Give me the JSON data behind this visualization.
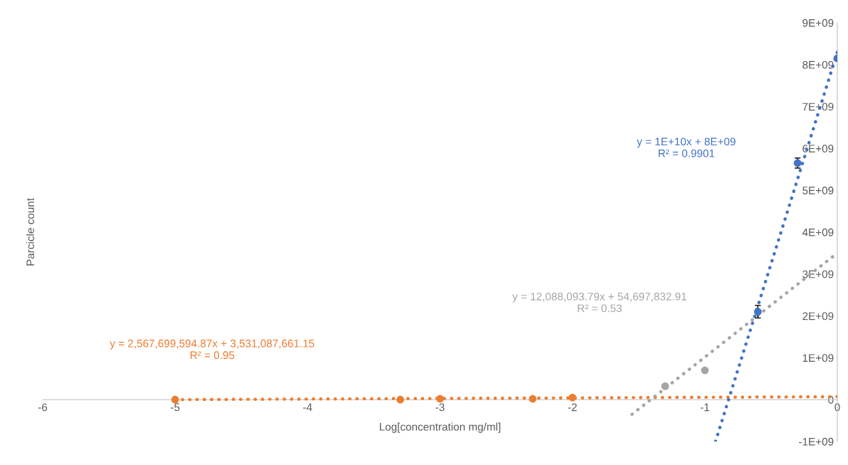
{
  "chart_data": {
    "type": "scatter",
    "xlabel": "Log[concentration mg/ml]",
    "ylabel": "Parcicle count",
    "xlim": [
      -6,
      0
    ],
    "xticks": [
      -6,
      -5,
      -4,
      -3,
      -2,
      -1,
      0
    ],
    "ylim": [
      -1000000000,
      9000000000
    ],
    "yticks": [
      {
        "value": -1000000000,
        "label": "-1E+09"
      },
      0,
      {
        "value": 1000000000,
        "label": "1E+09"
      },
      {
        "value": 2000000000,
        "label": "2E+09"
      },
      {
        "value": 3000000000,
        "label": "3E+09"
      },
      {
        "value": 4000000000,
        "label": "4E+09"
      },
      {
        "value": 5000000000,
        "label": "5E+09"
      },
      {
        "value": 6000000000,
        "label": "6E+09"
      },
      {
        "value": 7000000000,
        "label": "7E+09"
      },
      {
        "value": 8000000000,
        "label": "8E+09"
      },
      {
        "value": 9000000000,
        "label": "9E+09"
      }
    ],
    "grid": false,
    "legend": false,
    "series": [
      {
        "marker": "circle",
        "color": "#ed7d31",
        "x": [
          -5,
          -3.3,
          -3,
          -2.3,
          -2
        ],
        "values": [
          0,
          0,
          20000000,
          20000000,
          50000000
        ]
      },
      {
        "marker": "circle",
        "color": "#a5a5a5",
        "x": [
          -1.3,
          -1
        ],
        "values": [
          320000000,
          700000000
        ]
      },
      {
        "marker": "circle",
        "color": "#4472c4",
        "x": [
          -0.6,
          -0.3,
          0
        ],
        "values": [
          2100000000,
          5650000000,
          8150000000
        ],
        "errors": [
          150000000,
          120000000,
          null
        ]
      },
      {
        "type": "line",
        "line_style": "dotted",
        "color": "#ed7d31",
        "x": [
          -5,
          0
        ],
        "values": [
          0,
          70000000
        ]
      },
      {
        "type": "line",
        "line_style": "dotted",
        "color": "#a5a5a5",
        "x": [
          -1.55,
          0
        ],
        "values": [
          -350000000,
          3500000000
        ]
      },
      {
        "type": "line",
        "line_style": "dotted",
        "color": "#4472c4",
        "x": [
          -0.92,
          0
        ],
        "values": [
          -1000000000,
          8300000000
        ]
      }
    ],
    "annotations": [
      "y = 1E+10x + 8E+09\nR² = 0.9901",
      "y = 12,088,093.79x + 54,697,832.91\nR² = 0.53",
      "y = 2,567,699,594.87x + 3,531,087,661.15\nR² = 0.95"
    ]
  }
}
